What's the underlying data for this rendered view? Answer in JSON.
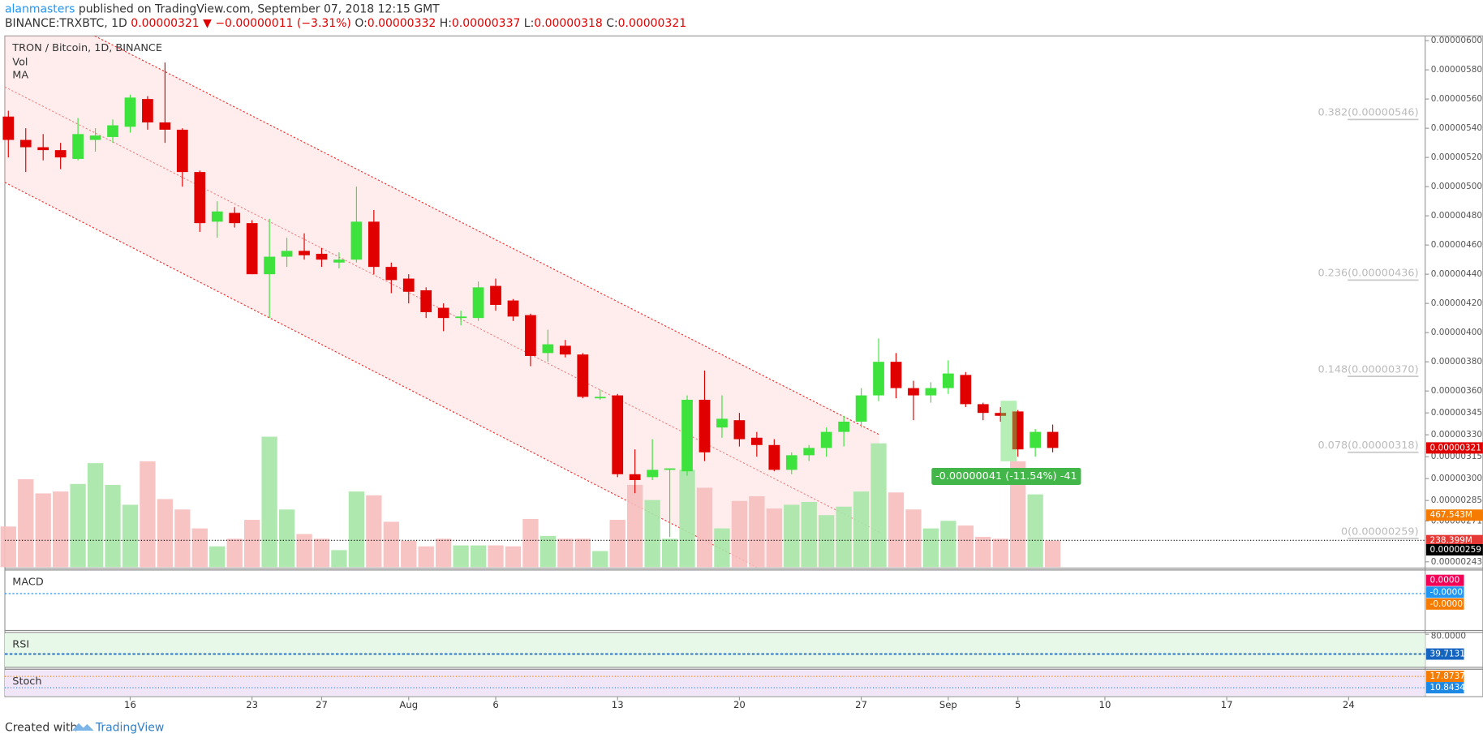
{
  "header": {
    "author": "alanmasters",
    "published": " published on TradingView.com, September 07, 2018 12:15 GMT",
    "symbol": "BINANCE:TRXBTC, 1D",
    "last": "0.00000321",
    "change": "▼ −0.00000011 (−3.31%)",
    "ohlc": [
      [
        "O:",
        "0.00000332"
      ],
      [
        "H:",
        "0.00000337"
      ],
      [
        "L:",
        "0.00000318"
      ],
      [
        "C:",
        "0.00000321"
      ]
    ]
  },
  "footer": {
    "created": "Created with",
    "brand": "TradingView"
  },
  "chart_data": {
    "type": "candlestick",
    "title": "TRON / Bitcoin, 1D, BINANCE",
    "legend": [
      "Vol",
      "MA"
    ],
    "up_color": "#3de23d",
    "down_color": "#e00000",
    "up_volume_color": "#a6e6a6",
    "down_volume_color": "#f6bcbc",
    "xlim": [
      -0.2,
      81.4
    ],
    "ylim": [
      2.4e-06,
      6e-06
    ],
    "xticks": [
      {
        "value": 7,
        "label": "16"
      },
      {
        "value": 14,
        "label": "23"
      },
      {
        "value": 18,
        "label": "27"
      },
      {
        "value": 23,
        "label": "Aug"
      },
      {
        "value": 28,
        "label": "6"
      },
      {
        "value": 35,
        "label": "13"
      },
      {
        "value": 42,
        "label": "20"
      },
      {
        "value": 49,
        "label": "27"
      },
      {
        "value": 54,
        "label": "Sep"
      },
      {
        "value": 58,
        "label": "5"
      },
      {
        "value": 63,
        "label": "10"
      },
      {
        "value": 70,
        "label": "17"
      },
      {
        "value": 77,
        "label": "24"
      }
    ],
    "yticks": [
      {
        "value": 6e-06,
        "label": "0.00000600"
      },
      {
        "value": 5.8e-06,
        "label": "0.00000580"
      },
      {
        "value": 5.6e-06,
        "label": "0.00000560"
      },
      {
        "value": 5.4e-06,
        "label": "0.00000540"
      },
      {
        "value": 5.2e-06,
        "label": "0.00000520"
      },
      {
        "value": 5e-06,
        "label": "0.00000500"
      },
      {
        "value": 4.8e-06,
        "label": "0.00000480"
      },
      {
        "value": 4.6e-06,
        "label": "0.00000460"
      },
      {
        "value": 4.4e-06,
        "label": "0.00000440"
      },
      {
        "value": 4.2e-06,
        "label": "0.00000420"
      },
      {
        "value": 4e-06,
        "label": "0.00000400"
      },
      {
        "value": 3.8e-06,
        "label": "0.00000380"
      },
      {
        "value": 3.6e-06,
        "label": "0.00000360"
      },
      {
        "value": 3.45e-06,
        "label": "0.00000345"
      },
      {
        "value": 3.3e-06,
        "label": "0.00000330"
      },
      {
        "value": 3.15e-06,
        "label": "0.00000315"
      },
      {
        "value": 3e-06,
        "label": "0.00000300"
      },
      {
        "value": 2.85e-06,
        "label": "0.00000285"
      },
      {
        "value": 2.71e-06,
        "label": "0.00000271"
      },
      {
        "value": 2.43e-06,
        "label": "0.00000243"
      }
    ],
    "open": [
      5.48e-06,
      5.32e-06,
      5.27e-06,
      5.25e-06,
      5.19e-06,
      5.32e-06,
      5.34e-06,
      5.41e-06,
      5.6e-06,
      5.44e-06,
      5.39e-06,
      5.1e-06,
      4.76e-06,
      4.82e-06,
      4.75e-06,
      4.4e-06,
      4.52e-06,
      4.56e-06,
      4.54e-06,
      4.48e-06,
      4.5e-06,
      4.76e-06,
      4.45e-06,
      4.37e-06,
      4.29e-06,
      4.17e-06,
      4.1e-06,
      4.1e-06,
      4.32e-06,
      4.22e-06,
      4.12e-06,
      3.86e-06,
      3.91e-06,
      3.85e-06,
      3.55e-06,
      3.57e-06,
      3.03e-06,
      3.01e-06,
      3.06e-06,
      3.05e-06,
      3.54e-06,
      3.35e-06,
      3.4e-06,
      3.28e-06,
      3.23e-06,
      3.06e-06,
      3.16e-06,
      3.21e-06,
      3.32e-06,
      3.39e-06,
      3.57e-06,
      3.8e-06,
      3.62e-06,
      3.57e-06,
      3.62e-06,
      3.71e-06,
      3.51e-06,
      3.45e-06,
      3.46e-06,
      3.21e-06,
      3.32e-06
    ],
    "high": [
      5.52e-06,
      5.4e-06,
      5.36e-06,
      5.3e-06,
      5.47e-06,
      5.4e-06,
      5.46e-06,
      5.63e-06,
      5.62e-06,
      5.85e-06,
      5.4e-06,
      5.11e-06,
      4.9e-06,
      4.86e-06,
      4.77e-06,
      4.78e-06,
      4.65e-06,
      4.68e-06,
      4.58e-06,
      4.55e-06,
      5e-06,
      4.84e-06,
      4.48e-06,
      4.4e-06,
      4.31e-06,
      4.2e-06,
      4.15e-06,
      4.35e-06,
      4.37e-06,
      4.23e-06,
      4.13e-06,
      4.02e-06,
      3.95e-06,
      3.86e-06,
      3.61e-06,
      3.58e-06,
      3.2e-06,
      3.27e-06,
      3.07e-06,
      3.57e-06,
      3.74e-06,
      3.57e-06,
      3.45e-06,
      3.32e-06,
      3.27e-06,
      3.18e-06,
      3.23e-06,
      3.35e-06,
      3.43e-06,
      3.62e-06,
      3.96e-06,
      3.86e-06,
      3.67e-06,
      3.66e-06,
      3.81e-06,
      3.73e-06,
      3.52e-06,
      3.49e-06,
      3.47e-06,
      3.34e-06,
      3.37e-06
    ],
    "low": [
      5.2e-06,
      5.1e-06,
      5.18e-06,
      5.12e-06,
      5.18e-06,
      5.24e-06,
      5.3e-06,
      5.37e-06,
      5.39e-06,
      5.3e-06,
      5e-06,
      4.69e-06,
      4.65e-06,
      4.72e-06,
      4.4e-06,
      4.1e-06,
      4.45e-06,
      4.5e-06,
      4.45e-06,
      4.44e-06,
      4.48e-06,
      4.4e-06,
      4.27e-06,
      4.2e-06,
      4.1e-06,
      4.01e-06,
      4.05e-06,
      4.08e-06,
      4.15e-06,
      4.08e-06,
      3.77e-06,
      3.8e-06,
      3.83e-06,
      3.55e-06,
      3.54e-06,
      3.01e-06,
      2.9e-06,
      2.99e-06,
      2.6e-06,
      3.02e-06,
      3.12e-06,
      3.28e-06,
      3.22e-06,
      3.15e-06,
      3.05e-06,
      3.03e-06,
      3.12e-06,
      3.15e-06,
      3.22e-06,
      3.35e-06,
      3.53e-06,
      3.55e-06,
      3.4e-06,
      3.52e-06,
      3.58e-06,
      3.49e-06,
      3.4e-06,
      3.39e-06,
      3.15e-06,
      3.15e-06,
      3.18e-06
    ],
    "close": [
      5.32e-06,
      5.27e-06,
      5.25e-06,
      5.2e-06,
      5.36e-06,
      5.35e-06,
      5.42e-06,
      5.61e-06,
      5.44e-06,
      5.39e-06,
      5.1e-06,
      4.75e-06,
      4.83e-06,
      4.75e-06,
      4.4e-06,
      4.52e-06,
      4.56e-06,
      4.53e-06,
      4.5e-06,
      4.5e-06,
      4.76e-06,
      4.45e-06,
      4.36e-06,
      4.28e-06,
      4.14e-06,
      4.1e-06,
      4.11e-06,
      4.31e-06,
      4.19e-06,
      4.11e-06,
      3.84e-06,
      3.92e-06,
      3.85e-06,
      3.56e-06,
      3.56e-06,
      3.03e-06,
      2.99e-06,
      3.06e-06,
      3.07e-06,
      3.54e-06,
      3.18e-06,
      3.41e-06,
      3.27e-06,
      3.23e-06,
      3.06e-06,
      3.16e-06,
      3.21e-06,
      3.32e-06,
      3.39e-06,
      3.57e-06,
      3.8e-06,
      3.62e-06,
      3.57e-06,
      3.62e-06,
      3.72e-06,
      3.51e-06,
      3.45e-06,
      3.43e-06,
      3.2e-06,
      3.32e-06,
      3.21e-06
    ],
    "volume": [
      365500000,
      790500000,
      663000000,
      680000000,
      748000000,
      935000000,
      739500000,
      561000000,
      952000000,
      612000000,
      518500000,
      348500000,
      187000000,
      255000000,
      425000000,
      1173000000,
      518500000,
      297500000,
      255000000,
      153000000,
      680000000,
      646000000,
      408000000,
      238000000,
      187000000,
      255000000,
      195500000,
      195500000,
      195500000,
      187000000,
      433500000,
      280500000,
      255000000,
      255000000,
      144500000,
      425000000,
      739500000,
      603500000,
      255000000,
      875500000,
      714000000,
      348500000,
      595000000,
      637500000,
      527000000,
      561000000,
      586500000,
      467500000,
      544000000,
      680000000,
      1113500000,
      671500000,
      518500000,
      348500000,
      416500000,
      374000000,
      272000000,
      255000000,
      952000000,
      654500000,
      238399000
    ],
    "last_price": {
      "value": 3.21e-06,
      "label": "0.00000321",
      "color": "#e00000"
    },
    "marker_price": {
      "value": 2.59e-06,
      "label": "0.00000259",
      "color": "#000000"
    },
    "volume_badges": [
      {
        "value": 467543000,
        "label": "467.543M",
        "color": "#f57c00"
      },
      {
        "value": 238399000,
        "label": "238.399M",
        "color": "#e53935"
      }
    ],
    "fib_levels": [
      {
        "value": 5.46e-06,
        "label": "0.382(0.00000546)"
      },
      {
        "value": 4.36e-06,
        "label": "0.236(0.00000436)"
      },
      {
        "value": 3.7e-06,
        "label": "0.148(0.00000370)"
      },
      {
        "value": 3.18e-06,
        "label": "0.078(0.00000318)"
      },
      {
        "value": 2.59e-06,
        "label": "0(0.00000259)"
      }
    ],
    "measure": "-0.00000041 (-11.54%) -41",
    "macd": {
      "title": "MACD",
      "values": [
        {
          "label": "0.0000",
          "color": "#f50057"
        },
        {
          "label": "-0.0000",
          "color": "#2196f3"
        },
        {
          "label": "-0.0000",
          "color": "#f57c00"
        }
      ]
    },
    "rsi": {
      "title": "RSI",
      "ticks": [
        {
          "value": 80,
          "label": "80.0000"
        }
      ],
      "value": 39.7131,
      "color": "#1565c0"
    },
    "stoch": {
      "title": "Stoch",
      "values": [
        {
          "value": 17.8737,
          "color": "#f57c00"
        },
        {
          "value": 10.8434,
          "color": "#1e88e5"
        }
      ]
    }
  }
}
